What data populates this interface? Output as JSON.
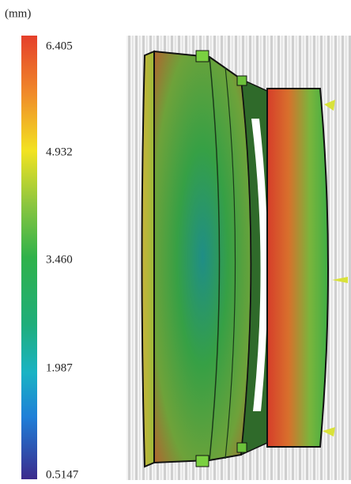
{
  "colorbar": {
    "unit": "(mm)",
    "ticks": [
      "6.405",
      "4.932",
      "3.460",
      "1.987",
      "0.5147"
    ]
  }
}
